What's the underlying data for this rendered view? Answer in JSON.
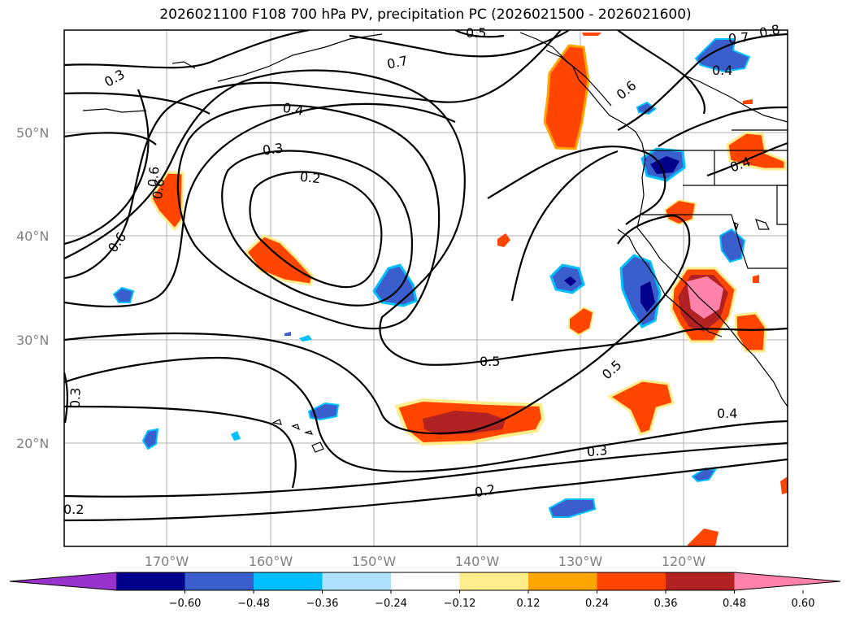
{
  "title": "2026021100 F108 700 hPa PV, precipitation PC (2026021500 - 2026021600)",
  "latitude_labels": [
    "50°N",
    "40°N",
    "30°N",
    "20°N"
  ],
  "longitude_labels": [
    "170°W",
    "160°W",
    "150°W",
    "140°W",
    "130°W",
    "120°W"
  ],
  "contour_labels": {
    "c1": "0.3",
    "c2": "0.4",
    "c3": "0.3",
    "c4": "0.2",
    "c5": "0.7",
    "c6": "0.6",
    "c7": "0.7",
    "c8": "0.8",
    "c9": "0.4",
    "c10": "0.6",
    "c11": "0.5",
    "c12": "0.6",
    "c13": "0.5",
    "c14": "0.5",
    "c15": "0.4",
    "c16": "0.3",
    "c17": "0.2",
    "c18": "0.3",
    "c19": "0.2",
    "c20": "0.4",
    "c21": "0.6"
  },
  "colorbar": {
    "ticks": [
      "−0.60",
      "−0.48",
      "−0.36",
      "−0.24",
      "−0.12",
      "0.12",
      "0.24",
      "0.36",
      "0.48",
      "0.60"
    ],
    "colors": [
      "#9932CC",
      "#00008B",
      "#3A5FCD",
      "#00BFFF",
      "#B0E2FF",
      "#FFFFFF",
      "#FFEC8B",
      "#FFA500",
      "#FF4500",
      "#B22222",
      "#FF82AB"
    ]
  },
  "colors": {
    "neg_strong": "#00008B",
    "neg_mid": "#3A5FCD",
    "neg_light": "#00BFFF",
    "pos_light": "#FFEC8B",
    "pos_mid": "#FFA500",
    "pos_strong": "#FF4500",
    "pos_dark": "#B22222",
    "pos_max": "#FF82AB"
  }
}
